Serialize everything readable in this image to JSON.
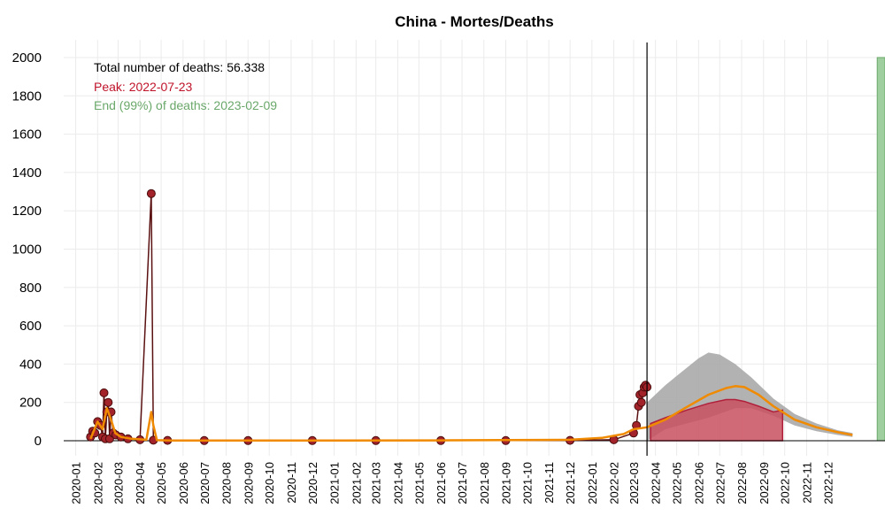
{
  "chart_data": {
    "type": "line",
    "title": "China - Mortes/Deaths",
    "xlabel": "",
    "ylabel": "",
    "ylim": [
      0,
      2000
    ],
    "yticks": [
      0,
      200,
      400,
      600,
      800,
      1000,
      1200,
      1400,
      1600,
      1800,
      2000
    ],
    "xlim": [
      "2019-12-15",
      "2023-02-20"
    ],
    "xtick_labels": [
      "2020-01",
      "2020-02",
      "2020-03",
      "2020-04",
      "2020-05",
      "2020-06",
      "2020-07",
      "2020-08",
      "2020-09",
      "2020-10",
      "2020-11",
      "2020-12",
      "2021-01",
      "2021-02",
      "2021-03",
      "2021-04",
      "2021-05",
      "2021-06",
      "2021-07",
      "2021-08",
      "2021-09",
      "2021-10",
      "2021-11",
      "2021-12",
      "2022-01",
      "2022-02",
      "2022-03",
      "2022-04",
      "2022-05",
      "2022-06",
      "2022-07",
      "2022-08",
      "2022-09",
      "2022-10",
      "2022-11",
      "2022-12"
    ],
    "grid": true,
    "annotations": {
      "total": "Total number of deaths: 56.338",
      "peak": "Peak: 2022-07-23",
      "end": "End (99%) of deaths: 2023-02-09"
    },
    "current_date": "2022-03-20",
    "end_date": "2023-02-09",
    "colors": {
      "observed": "#a3232a",
      "observed_line": "#5a1010",
      "smooth": "#f08a00",
      "forecast_band": "#aaaaaa",
      "forecast_fill": "#c9505f",
      "end_band": "#9fcf9f",
      "peak_text": "#c0142b",
      "end_text": "#6aa86a"
    },
    "series": [
      {
        "name": "",
        "kind": "observed_daily",
        "x": [
          "2020-01-22",
          "2020-01-25",
          "2020-01-28",
          "2020-02-01",
          "2020-02-05",
          "2020-02-08",
          "2020-02-10",
          "2020-02-12",
          "2020-02-14",
          "2020-02-16",
          "2020-02-18",
          "2020-02-20",
          "2020-02-23",
          "2020-02-27",
          "2020-03-05",
          "2020-03-15",
          "2020-04-01",
          "2020-04-17",
          "2020-04-20",
          "2020-05-10",
          "2020-07-01",
          "2020-09-01",
          "2020-12-01",
          "2021-03-01",
          "2021-06-01",
          "2021-09-01",
          "2021-12-01",
          "2022-02-01",
          "2022-03-01",
          "2022-03-05",
          "2022-03-08",
          "2022-03-10",
          "2022-03-12",
          "2022-03-14",
          "2022-03-16",
          "2022-03-18",
          "2022-03-20"
        ],
        "values": [
          20,
          50,
          40,
          100,
          80,
          20,
          250,
          10,
          150,
          200,
          10,
          150,
          40,
          30,
          20,
          10,
          5,
          1290,
          3,
          2,
          1,
          1,
          1,
          1,
          1,
          1,
          2,
          5,
          40,
          80,
          180,
          240,
          200,
          250,
          280,
          290,
          280
        ]
      },
      {
        "name": "",
        "kind": "smoothed",
        "x": [
          "2020-01-22",
          "2020-02-01",
          "2020-02-08",
          "2020-02-14",
          "2020-02-20",
          "2020-02-26",
          "2020-03-05",
          "2020-03-20",
          "2020-04-10",
          "2020-04-17",
          "2020-04-20",
          "2020-04-25",
          "2020-05-15",
          "2020-09-01",
          "2021-06-01",
          "2021-12-01",
          "2022-01-15",
          "2022-02-15",
          "2022-03-01",
          "2022-03-20",
          "2022-04-15",
          "2022-05-15",
          "2022-06-15",
          "2022-07-10",
          "2022-07-23",
          "2022-08-05",
          "2022-08-25",
          "2022-09-15",
          "2022-10-15",
          "2022-11-15",
          "2022-12-15",
          "2023-01-05"
        ],
        "values": [
          10,
          100,
          60,
          170,
          110,
          40,
          20,
          10,
          5,
          150,
          80,
          3,
          1,
          1,
          2,
          5,
          15,
          35,
          60,
          70,
          110,
          175,
          240,
          275,
          285,
          280,
          240,
          180,
          110,
          70,
          45,
          30
        ]
      },
      {
        "name": "",
        "kind": "forecast_upper",
        "x": [
          "2022-03-20",
          "2022-04-15",
          "2022-05-15",
          "2022-06-01",
          "2022-06-15",
          "2022-07-01",
          "2022-07-23",
          "2022-08-15",
          "2022-09-15",
          "2022-10-15",
          "2022-11-15",
          "2022-12-15",
          "2023-01-05"
        ],
        "values": [
          200,
          290,
          380,
          430,
          460,
          450,
          400,
          330,
          220,
          140,
          90,
          55,
          40
        ]
      },
      {
        "name": "",
        "kind": "forecast_lower",
        "x": [
          "2022-03-20",
          "2022-04-15",
          "2022-05-15",
          "2022-06-15",
          "2022-07-23",
          "2022-08-15",
          "2022-09-15",
          "2022-10-15",
          "2022-11-15",
          "2022-12-15",
          "2023-01-05"
        ],
        "values": [
          0,
          60,
          90,
          120,
          170,
          170,
          130,
          80,
          50,
          30,
          20
        ]
      },
      {
        "name": "",
        "kind": "forecast_central_filled",
        "x": [
          "2022-03-25",
          "2022-04-15",
          "2022-05-15",
          "2022-06-15",
          "2022-07-10",
          "2022-07-23",
          "2022-08-05",
          "2022-08-25",
          "2022-09-15",
          "2022-09-28"
        ],
        "values": [
          90,
          120,
          160,
          195,
          215,
          215,
          205,
          180,
          150,
          160
        ]
      }
    ]
  }
}
